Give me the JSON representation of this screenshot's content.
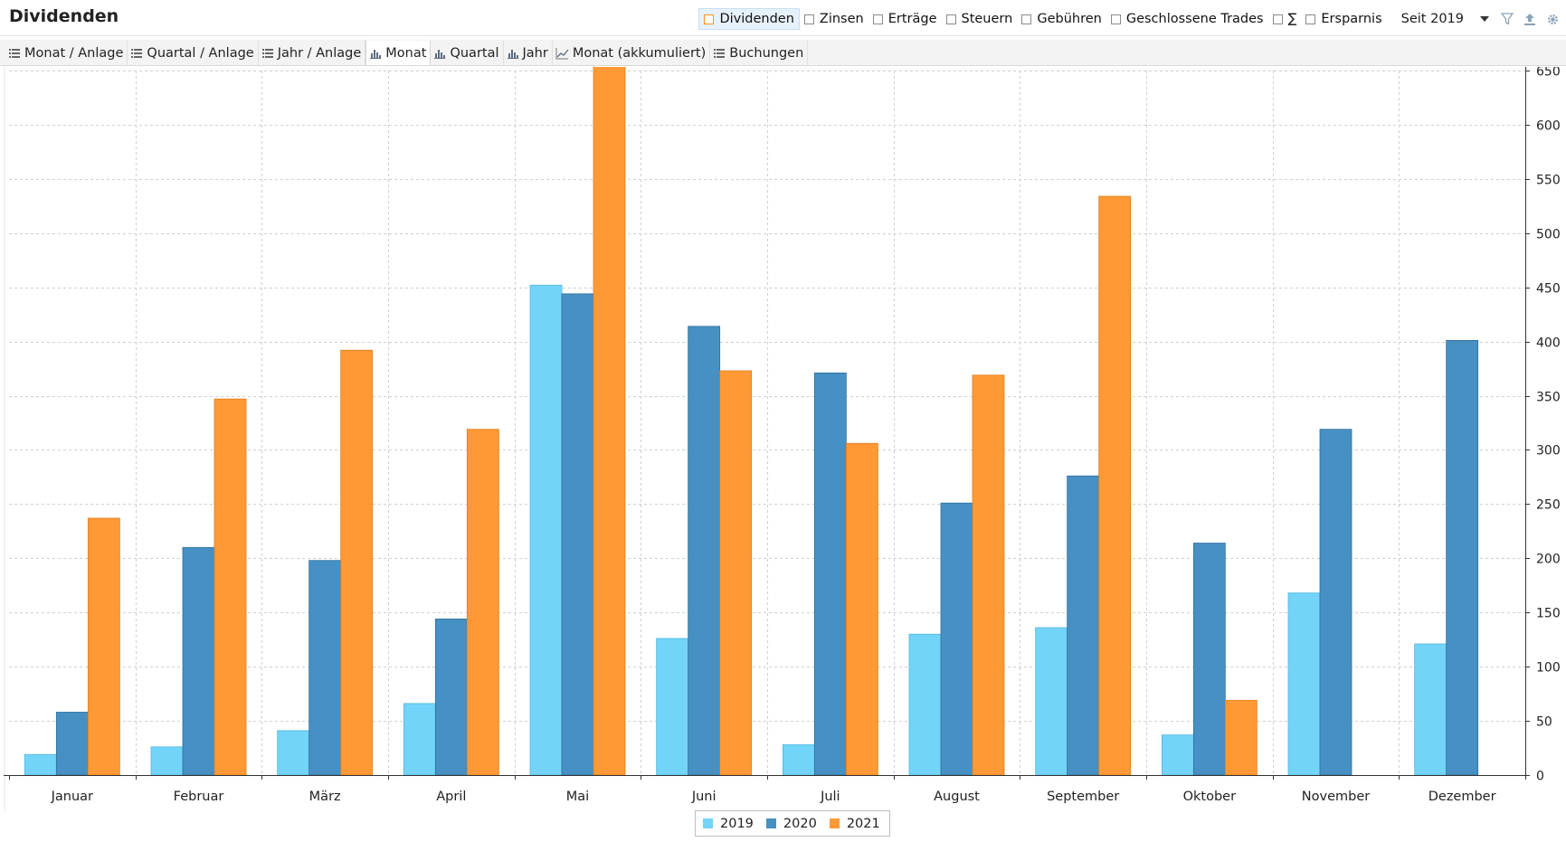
{
  "header": {
    "title": "Dividenden",
    "filters": [
      {
        "label": "Dividenden",
        "checked": true
      },
      {
        "label": "Zinsen",
        "checked": false
      },
      {
        "label": "Erträge",
        "checked": false
      },
      {
        "label": "Steuern",
        "checked": false
      },
      {
        "label": "Gebühren",
        "checked": false
      },
      {
        "label": "Geschlossene Trades",
        "checked": false
      },
      {
        "label": "∑",
        "checked": false
      },
      {
        "label": "Ersparnis",
        "checked": false
      }
    ],
    "period": "Seit 2019",
    "icons": [
      "filter-icon",
      "export-icon",
      "gear-icon"
    ]
  },
  "tabs": [
    {
      "label": "Monat / Anlage",
      "icon": "table-icon",
      "active": false
    },
    {
      "label": "Quartal / Anlage",
      "icon": "table-icon",
      "active": false
    },
    {
      "label": "Jahr / Anlage",
      "icon": "table-icon",
      "active": false
    },
    {
      "label": "Monat",
      "icon": "bar-chart-icon",
      "active": true
    },
    {
      "label": "Quartal",
      "icon": "bar-chart-icon",
      "active": false
    },
    {
      "label": "Jahr",
      "icon": "bar-chart-icon",
      "active": false
    },
    {
      "label": "Monat (akkumuliert)",
      "icon": "line-chart-icon",
      "active": false
    },
    {
      "label": "Buchungen",
      "icon": "table-icon",
      "active": false
    }
  ],
  "chart_data": {
    "type": "bar",
    "title": "",
    "xlabel": "",
    "ylabel": "",
    "ylim": [
      0,
      650
    ],
    "yticks": [
      0,
      50,
      100,
      150,
      200,
      250,
      300,
      350,
      400,
      450,
      500,
      550,
      600,
      650
    ],
    "y_axis_side": "right",
    "grid": true,
    "legend_position": "bottom-center",
    "categories": [
      "Januar",
      "Februar",
      "März",
      "April",
      "Mai",
      "Juni",
      "Juli",
      "August",
      "September",
      "Oktober",
      "November",
      "Dezember"
    ],
    "series": [
      {
        "name": "2019",
        "color": "#72d4f8",
        "values": [
          19,
          26,
          41,
          66,
          452,
          126,
          28,
          130,
          136,
          37,
          168,
          121
        ]
      },
      {
        "name": "2020",
        "color": "#4690c3",
        "values": [
          58,
          210,
          198,
          144,
          444,
          414,
          371,
          251,
          276,
          214,
          319,
          401
        ]
      },
      {
        "name": "2021",
        "color": "#ff9935",
        "values": [
          237,
          347,
          392,
          319,
          654,
          373,
          306,
          369,
          534,
          69,
          null,
          null
        ]
      }
    ]
  }
}
